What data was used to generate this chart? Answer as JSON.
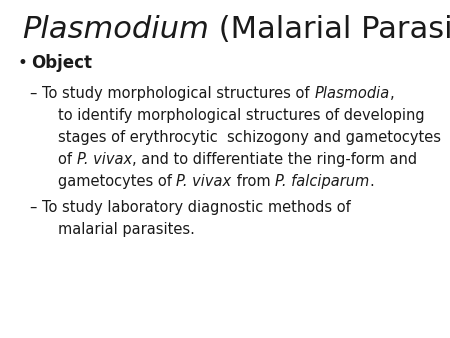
{
  "background_color": "#ffffff",
  "title_italic": "Plasmodium",
  "title_normal": " (Malarial Parasite)",
  "title_fontsize": 22,
  "bullet_label": "Object",
  "bullet_fontsize": 12,
  "body_fontsize": 10.5,
  "text_color": "#1a1a1a"
}
